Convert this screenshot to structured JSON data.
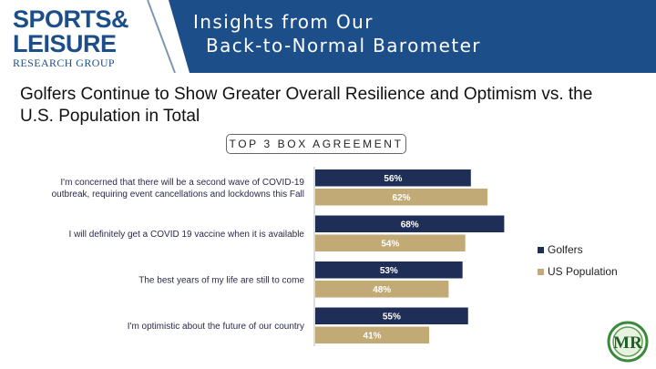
{
  "header": {
    "logo_line1": "SPORTS&",
    "logo_line2": "LEISURE",
    "logo_line3": "RESEARCH GROUP",
    "title_line1": "Insights from Our",
    "title_line2": "Back-to-Normal Barometer"
  },
  "headline": "Golfers Continue to Show Greater Overall Resilience and Optimism vs. the U.S. Population in Total",
  "mr_logo": {
    "text": "MR"
  },
  "colors": {
    "header_blue": "#1c4f8a",
    "golfers": "#1f2e57",
    "us_population": "#c2aa76"
  },
  "chart_data": {
    "type": "bar",
    "orientation": "horizontal",
    "title": "TOP 3 BOX AGREEMENT",
    "categories": [
      "I'm concerned that there will be a second wave of COVID-19 outbreak, requiring event cancellations and lockdowns this Fall",
      "I will definitely get a COVID 19 vaccine when it is available",
      "The best years of my life are still to come",
      "I'm optimistic about the future of our country"
    ],
    "series": [
      {
        "name": "Golfers",
        "values": [
          56,
          68,
          53,
          55
        ],
        "color": "#1f2e57"
      },
      {
        "name": "US Population",
        "values": [
          62,
          54,
          48,
          41
        ],
        "color": "#c2aa76"
      }
    ],
    "value_format": "percent",
    "xlim": [
      0,
      100
    ],
    "grid": false,
    "legend": "right"
  }
}
